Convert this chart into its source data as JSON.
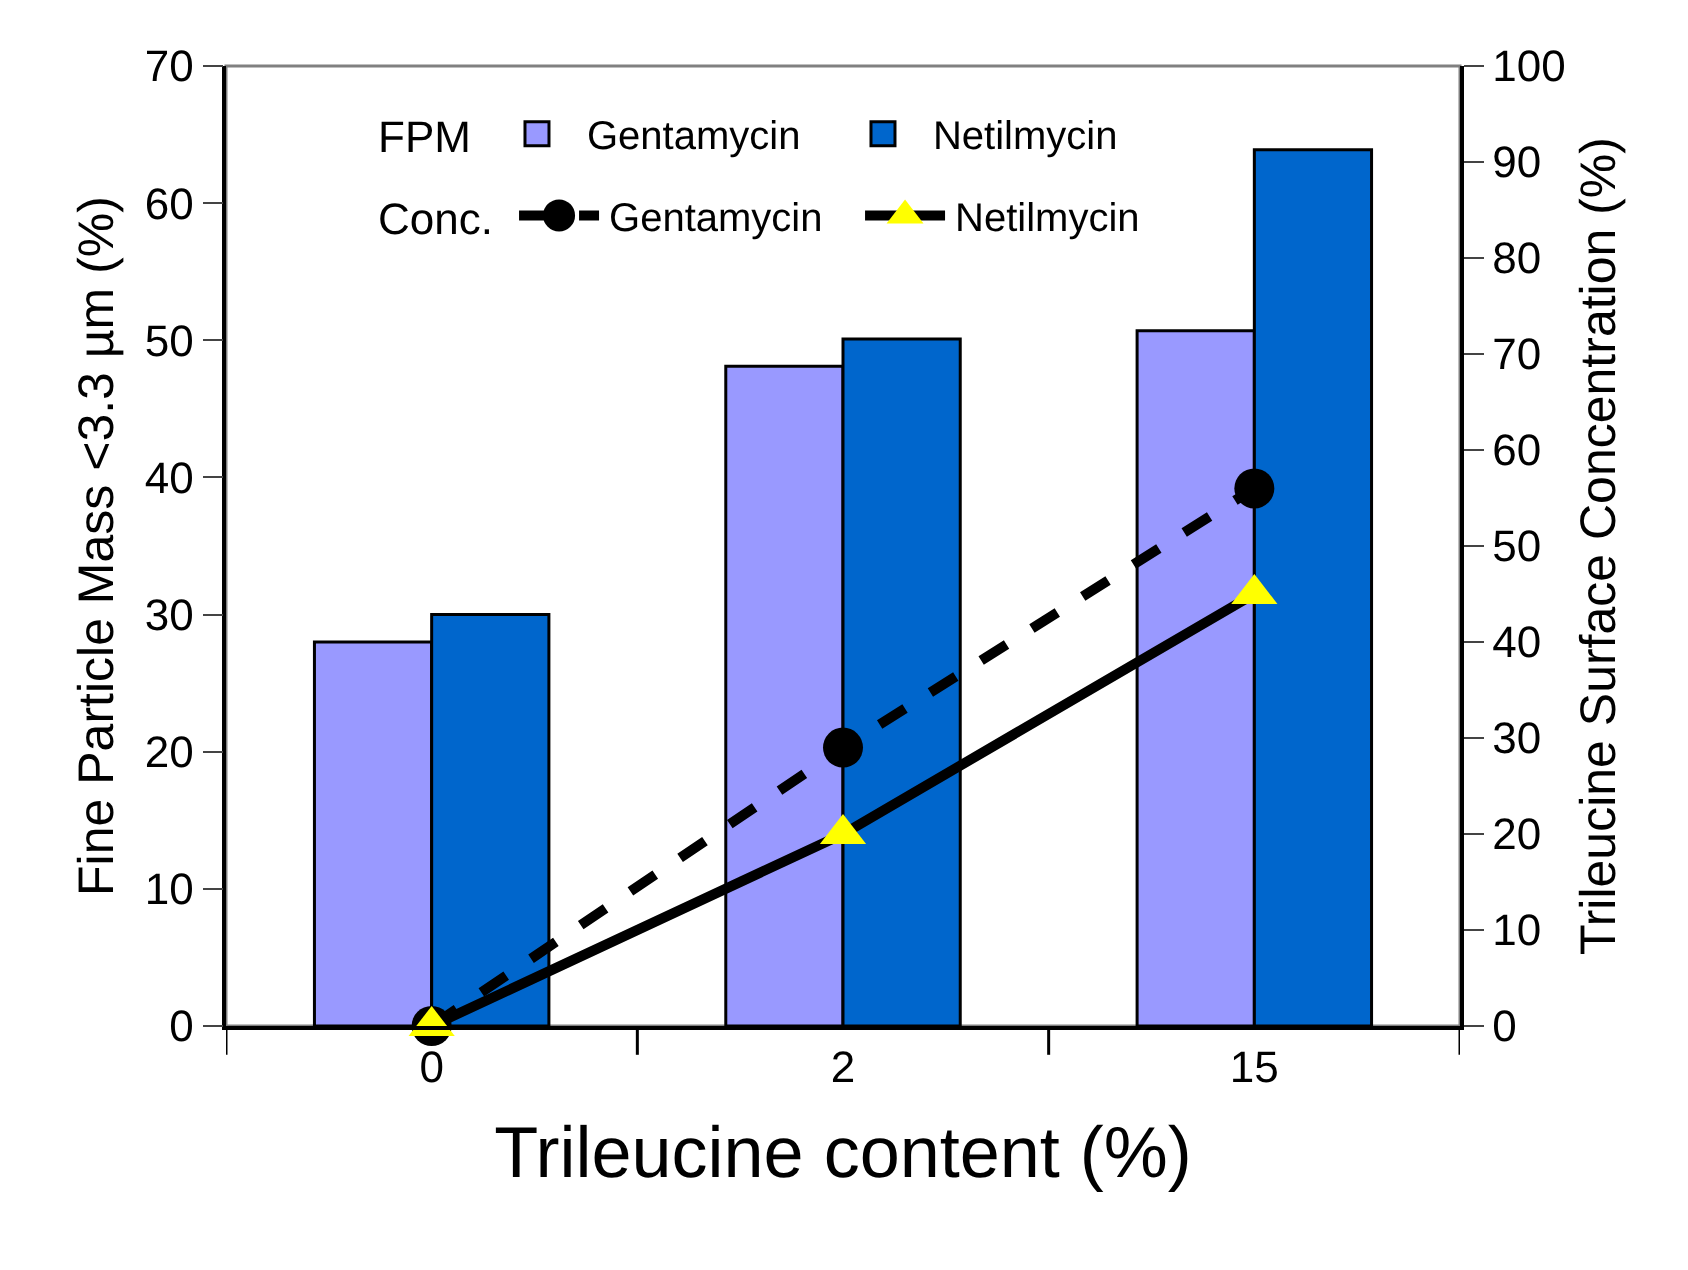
{
  "chart_data": {
    "type": "bar",
    "xlabel": "Trileucine content (%)",
    "ylabel": "Fine Particle Mass <3.3 µm (%)",
    "y2label": "Trileucine Surface Concentration (%)",
    "categories": [
      "0",
      "2",
      "15"
    ],
    "series": [
      {
        "name": "Gentamycin",
        "color": "#9999ff",
        "values": [
          28,
          48.1,
          50.7
        ]
      },
      {
        "name": "Netilmycin",
        "color": "#0066cc",
        "values": [
          30,
          50.1,
          63.9
        ]
      },
      {
        "name": "Gentamycin",
        "type": "line",
        "axis": "y2",
        "color": "#000000",
        "marker": "circle",
        "line_style": "dashed",
        "values": [
          0,
          29,
          56
        ]
      },
      {
        "name": "Netilmycin",
        "type": "line",
        "axis": "y2",
        "color": "#000000",
        "marker": "triangle",
        "line_style": "solid",
        "values": [
          0,
          20,
          45
        ]
      }
    ],
    "annotations": [
      "FPM",
      "Conc."
    ],
    "ylim": [
      0,
      70
    ],
    "yticks": [
      0,
      10,
      20,
      30,
      40,
      50,
      60,
      70
    ],
    "y2lim": [
      0,
      100
    ],
    "y2ticks": [
      0,
      10,
      20,
      30,
      40,
      50,
      60,
      70,
      80,
      90,
      100
    ],
    "grid": false,
    "legend": "top"
  }
}
